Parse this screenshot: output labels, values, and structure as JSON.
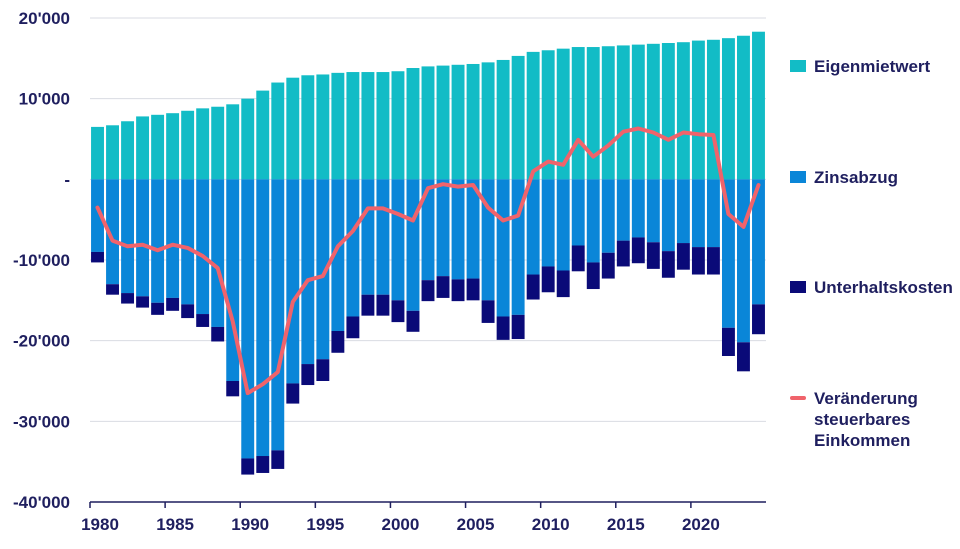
{
  "chart_data": {
    "type": "bar",
    "stacked": true,
    "x": [
      1980,
      1981,
      1982,
      1983,
      1984,
      1985,
      1986,
      1987,
      1988,
      1989,
      1990,
      1991,
      1992,
      1993,
      1994,
      1995,
      1996,
      1997,
      1998,
      1999,
      2000,
      2001,
      2002,
      2003,
      2004,
      2005,
      2006,
      2007,
      2008,
      2009,
      2010,
      2011,
      2012,
      2013,
      2014,
      2015,
      2016,
      2017,
      2018,
      2019,
      2020,
      2021,
      2022,
      2023,
      2024
    ],
    "x_ticks": [
      "1980",
      "1985",
      "1990",
      "1995",
      "2000",
      "2005",
      "2010",
      "2015",
      "2020"
    ],
    "y_ticks": [
      "20'000",
      "10'000",
      "-",
      "-10'000",
      "-20'000",
      "-30'000",
      "-40'000"
    ],
    "ylim": [
      -40000,
      20000
    ],
    "series": [
      {
        "name": "Eigenmietwert",
        "kind": "bar",
        "color": "#12bcc6",
        "values": [
          6500,
          6700,
          7200,
          7800,
          8000,
          8200,
          8500,
          8800,
          9000,
          9300,
          10000,
          11000,
          12000,
          12600,
          12900,
          13000,
          13200,
          13300,
          13300,
          13300,
          13400,
          13800,
          14000,
          14100,
          14200,
          14300,
          14500,
          14800,
          15300,
          15800,
          16000,
          16200,
          16400,
          16400,
          16500,
          16600,
          16700,
          16800,
          16900,
          17000,
          17200,
          17300,
          17500,
          17800,
          18300
        ]
      },
      {
        "name": "Zinsabzug",
        "kind": "bar",
        "color": "#0a86d8",
        "values": [
          -9000,
          -13000,
          -14100,
          -14500,
          -15300,
          -14700,
          -15500,
          -16700,
          -18300,
          -25000,
          -34600,
          -34300,
          -33600,
          -25300,
          -22900,
          -22300,
          -18800,
          -17000,
          -14300,
          -14300,
          -15000,
          -16300,
          -12500,
          -12000,
          -12400,
          -12300,
          -15000,
          -17000,
          -16800,
          -11800,
          -10800,
          -11300,
          -8200,
          -10300,
          -9100,
          -7600,
          -7200,
          -7800,
          -8900,
          -7900,
          -8400,
          -8400,
          -18400,
          -20200,
          -15500
        ]
      },
      {
        "name": "Unterhaltskosten",
        "kind": "bar",
        "color": "#0a0a78",
        "values": [
          -1300,
          -1300,
          -1300,
          -1400,
          -1500,
          -1600,
          -1700,
          -1600,
          -1800,
          -1900,
          -2000,
          -2100,
          -2300,
          -2500,
          -2600,
          -2700,
          -2700,
          -2700,
          -2600,
          -2600,
          -2700,
          -2600,
          -2600,
          -2700,
          -2700,
          -2700,
          -2800,
          -2900,
          -3000,
          -3100,
          -3200,
          -3300,
          -3200,
          -3300,
          -3200,
          -3200,
          -3200,
          -3300,
          -3300,
          -3300,
          -3400,
          -3400,
          -3500,
          -3600,
          -3700
        ]
      },
      {
        "name": "Veränderung\nsteuerbares\nEinkommen",
        "kind": "line",
        "color": "#f0636b",
        "values": [
          -3500,
          -7600,
          -8300,
          -8100,
          -8800,
          -8100,
          -8500,
          -9500,
          -11000,
          -17600,
          -26500,
          -25400,
          -23900,
          -15200,
          -12500,
          -12000,
          -8300,
          -6400,
          -3600,
          -3600,
          -4300,
          -5100,
          -1100,
          -600,
          -900,
          -700,
          -3500,
          -5100,
          -4500,
          1000,
          2200,
          1800,
          4900,
          2800,
          4200,
          5900,
          6300,
          5800,
          4900,
          5800,
          5600,
          5500,
          -4300,
          -5900,
          -700
        ]
      }
    ]
  }
}
